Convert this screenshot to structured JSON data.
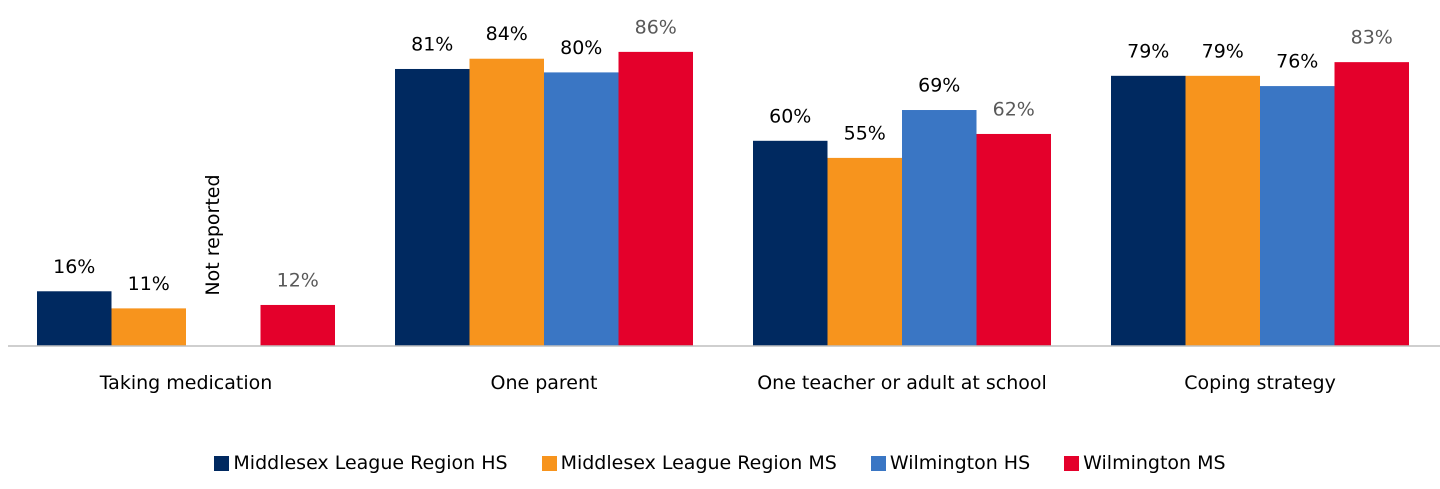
{
  "chart_data": {
    "type": "bar",
    "categories": [
      "Taking medication",
      "One parent",
      "One teacher or adult at school",
      "Coping strategy"
    ],
    "series": [
      {
        "name": "Middlesex League Region HS",
        "color": "#002960",
        "label_color": "#000000",
        "values": [
          16,
          81,
          60,
          79
        ],
        "value_labels": [
          "16%",
          "81%",
          "60%",
          "79%"
        ]
      },
      {
        "name": "Middlesex League Region MS",
        "color": "#f7941d",
        "label_color": "#000000",
        "values": [
          11,
          84,
          55,
          79
        ],
        "value_labels": [
          "11%",
          "84%",
          "55%",
          "79%"
        ]
      },
      {
        "name": "Wilmington HS",
        "color": "#3a76c4",
        "label_color": "#000000",
        "values": [
          null,
          80,
          69,
          76
        ],
        "value_labels": [
          null,
          "80%",
          "69%",
          "76%"
        ]
      },
      {
        "name": "Wilmington MS",
        "color": "#e4002b",
        "label_color": "#595959",
        "values": [
          12,
          86,
          62,
          83
        ],
        "value_labels": [
          "12%",
          "86%",
          "62%",
          "83%"
        ]
      }
    ],
    "annotations": [
      {
        "text": "Not reported",
        "category": 0,
        "series": 2
      }
    ],
    "ylim": [
      0,
      100
    ],
    "legend": "bottom"
  }
}
